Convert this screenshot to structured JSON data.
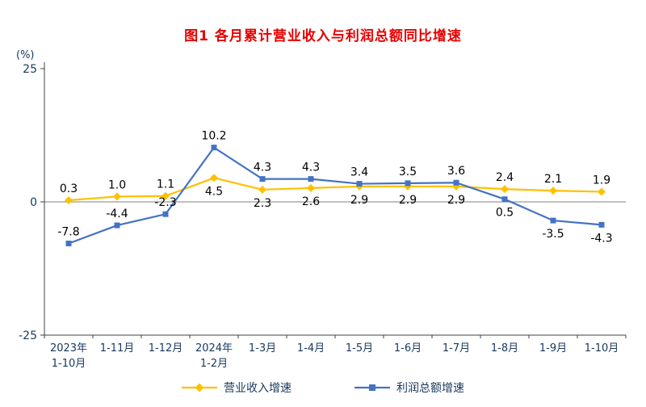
{
  "chart_data": {
    "type": "line",
    "title": "图1  各月累计营业收入与利润总额同比增速",
    "ylabel": "(%)",
    "ylim": [
      -25,
      25
    ],
    "ytick_labels": [
      "25",
      "0",
      "-25"
    ],
    "ytick_values": [
      25,
      0,
      -25
    ],
    "categories": [
      [
        "2023年",
        "1-10月"
      ],
      [
        "1-11月"
      ],
      [
        "1-12月"
      ],
      [
        "2024年",
        "1-2月"
      ],
      [
        "1-3月"
      ],
      [
        "1-4月"
      ],
      [
        "1-5月"
      ],
      [
        "1-6月"
      ],
      [
        "1-7月"
      ],
      [
        "1-8月"
      ],
      [
        "1-9月"
      ],
      [
        "1-10月"
      ]
    ],
    "series": [
      {
        "name": "营业收入增速",
        "color": "#FFC000",
        "marker": "diamond",
        "values": [
          0.3,
          1.0,
          1.1,
          4.5,
          2.3,
          2.6,
          2.9,
          2.9,
          2.9,
          2.4,
          2.1,
          1.9
        ],
        "labels": [
          "0.3",
          "1.0",
          "1.1",
          "4.5",
          "2.3",
          "2.6",
          "2.9",
          "2.9",
          "2.9",
          "2.4",
          "2.1",
          "1.9"
        ],
        "label_pos": [
          "above",
          "above",
          "above",
          "below",
          "below",
          "below",
          "below",
          "below",
          "below",
          "above",
          "above",
          "above"
        ]
      },
      {
        "name": "利润总额增速",
        "color": "#4472C4",
        "marker": "square",
        "values": [
          -7.8,
          -4.4,
          -2.3,
          10.2,
          4.3,
          4.3,
          3.4,
          3.5,
          3.6,
          0.5,
          -3.5,
          -4.3
        ],
        "labels": [
          "-7.8",
          "-4.4",
          "-2.3",
          "10.2",
          "4.3",
          "4.3",
          "3.4",
          "3.5",
          "3.6",
          "0.5",
          "-3.5",
          "-4.3"
        ],
        "label_pos": [
          "above",
          "above",
          "above",
          "above",
          "above",
          "above",
          "above",
          "above",
          "above",
          "below",
          "below",
          "below"
        ]
      }
    ],
    "legend_position": "bottom",
    "grid": "off",
    "style": {
      "title_color": "#e60000",
      "axis_text_color": "#17375e",
      "data_label_color": "#000000",
      "axis_line_color": "#404040",
      "zero_line_color": "#808080",
      "background": "#ffffff"
    }
  }
}
